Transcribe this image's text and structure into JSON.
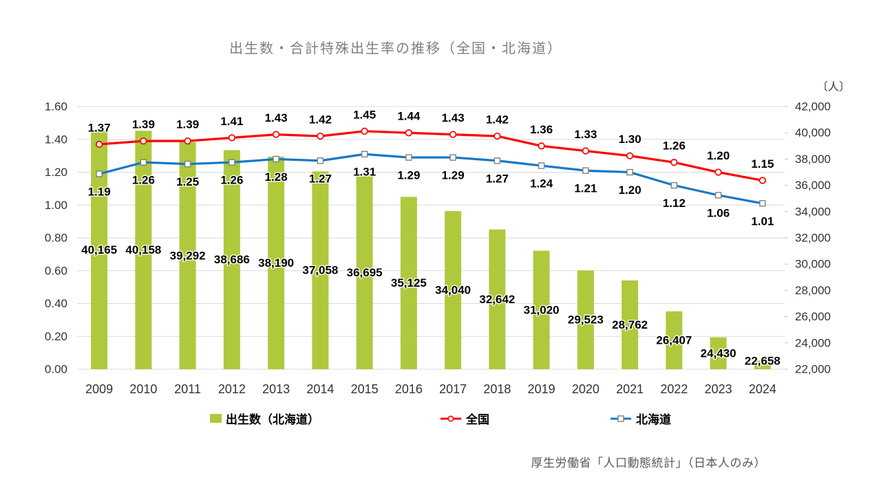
{
  "title": "出生数・合計特殊出生率の推移（全国・北海道）",
  "source_note": "厚生労働省「人口動態統計」（日本人のみ）",
  "colors": {
    "bar": "#AFC93D",
    "national_line": "#FF0000",
    "hokkaido_line": "#1878C8",
    "marker_fill": "#FFFFFF",
    "hokkaido_marker_edge": "#7F7F7F",
    "grid": "#D9D9D9",
    "axis_text": "#333333",
    "title_text": "#7F7F7F",
    "source_text": "#595959",
    "data_label_text": "#000000"
  },
  "legend": {
    "items": [
      {
        "label": "出生数（北海道）",
        "series": "births_hokkaido"
      },
      {
        "label": "全国",
        "series": "tfr_national"
      },
      {
        "label": "北海道",
        "series": "tfr_hokkaido"
      }
    ]
  },
  "chart_data": {
    "type": "combo (bar + line)",
    "title": "出生数・合計特殊出生率の推移（全国・北海道）",
    "categories": [
      "2009",
      "2010",
      "2011",
      "2012",
      "2013",
      "2014",
      "2015",
      "2016",
      "2017",
      "2018",
      "2019",
      "2020",
      "2021",
      "2022",
      "2023",
      "2024"
    ],
    "series": [
      {
        "name": "出生数（北海道）",
        "type": "bar",
        "axis": "right",
        "values": [
          40165,
          40158,
          39292,
          38686,
          38190,
          37058,
          36695,
          35125,
          34040,
          32642,
          31020,
          29523,
          28762,
          26407,
          24430,
          22658
        ],
        "labels": [
          "40,165",
          "40,158",
          "39,292",
          "38,686",
          "38,190",
          "37,058",
          "36,695",
          "35,125",
          "34,040",
          "32,642",
          "31,020",
          "29,523",
          "28,762",
          "26,407",
          "24,430",
          "22,658"
        ]
      },
      {
        "name": "全国",
        "type": "line",
        "axis": "left",
        "marker": "circle",
        "values": [
          1.37,
          1.39,
          1.39,
          1.41,
          1.43,
          1.42,
          1.45,
          1.44,
          1.43,
          1.42,
          1.36,
          1.33,
          1.3,
          1.26,
          1.2,
          1.15
        ],
        "labels": [
          "1.37",
          "1.39",
          "1.39",
          "1.41",
          "1.43",
          "1.42",
          "1.45",
          "1.44",
          "1.43",
          "1.42",
          "1.36",
          "1.33",
          "1.30",
          "1.26",
          "1.20",
          "1.15"
        ]
      },
      {
        "name": "北海道",
        "type": "line",
        "axis": "left",
        "marker": "square",
        "values": [
          1.19,
          1.26,
          1.25,
          1.26,
          1.28,
          1.27,
          1.31,
          1.29,
          1.29,
          1.27,
          1.24,
          1.21,
          1.2,
          1.12,
          1.06,
          1.01
        ],
        "labels": [
          "1.19",
          "1.26",
          "1.25",
          "1.26",
          "1.28",
          "1.27",
          "1.31",
          "1.29",
          "1.29",
          "1.27",
          "1.24",
          "1.21",
          "1.20",
          "1.12",
          "1.06",
          "1.01"
        ]
      }
    ],
    "left_axis": {
      "min": 0.0,
      "max": 1.6,
      "step": 0.2,
      "ticks": [
        "0.00",
        "0.20",
        "0.40",
        "0.60",
        "0.80",
        "1.00",
        "1.20",
        "1.40",
        "1.60"
      ]
    },
    "right_axis": {
      "min": 22000,
      "max": 42000,
      "step": 2000,
      "unit_label": "〔人〕",
      "ticks": [
        "22,000",
        "24,000",
        "26,000",
        "28,000",
        "30,000",
        "32,000",
        "34,000",
        "36,000",
        "38,000",
        "40,000",
        "42,000"
      ]
    },
    "grid": true,
    "legend_position": "bottom"
  }
}
